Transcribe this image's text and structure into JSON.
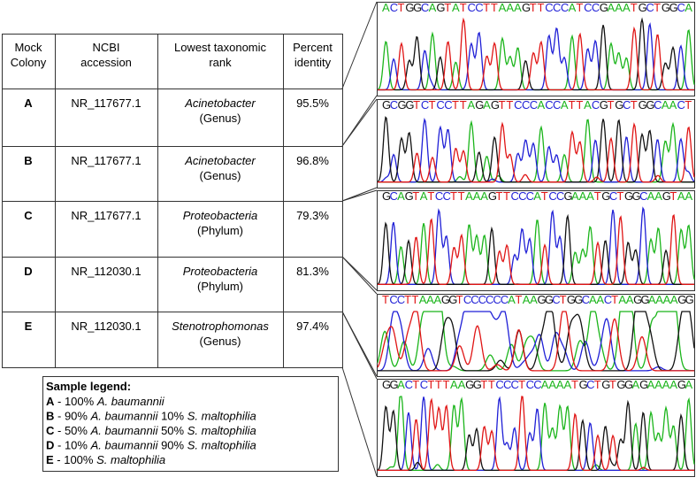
{
  "table": {
    "header": [
      "Mock Colony",
      "NCBI accession",
      "Lowest taxonomic rank",
      "Percent identity"
    ],
    "rows": [
      {
        "colony": "A",
        "accession": "NR_117677.1",
        "taxon": "Acinetobacter",
        "rank": "(Genus)",
        "identity": "95.5%"
      },
      {
        "colony": "B",
        "accession": "NR_117677.1",
        "taxon": "Acinetobacter",
        "rank": "(Genus)",
        "identity": "96.8%"
      },
      {
        "colony": "C",
        "accession": "NR_117677.1",
        "taxon": "Proteobacteria",
        "rank": "(Phylum)",
        "identity": "79.3%"
      },
      {
        "colony": "D",
        "accession": "NR_112030.1",
        "taxon": "Proteobacteria",
        "rank": "(Phylum)",
        "identity": "81.3%"
      },
      {
        "colony": "E",
        "accession": "NR_112030.1",
        "taxon": "Stenotrophomonas",
        "rank": "(Genus)",
        "identity": "97.4%"
      }
    ]
  },
  "legend": {
    "title": "Sample legend:",
    "items": [
      {
        "key": "A",
        "segments": [
          {
            "text": " - 100% ",
            "italic": false
          },
          {
            "text": "A. baumannii",
            "italic": true
          }
        ]
      },
      {
        "key": "B",
        "segments": [
          {
            "text": " - 90% ",
            "italic": false
          },
          {
            "text": "A. baumannii",
            "italic": true
          },
          {
            "text": " 10% ",
            "italic": false
          },
          {
            "text": "S. maltophilia",
            "italic": true
          }
        ]
      },
      {
        "key": "C",
        "segments": [
          {
            "text": " - 50% ",
            "italic": false
          },
          {
            "text": "A. baumannii",
            "italic": true
          },
          {
            "text": " 50% ",
            "italic": false
          },
          {
            "text": "S. maltophilia",
            "italic": true
          }
        ]
      },
      {
        "key": "D",
        "segments": [
          {
            "text": " - 10% ",
            "italic": false
          },
          {
            "text": "A. baumannii",
            "italic": true
          },
          {
            "text": " 90% ",
            "italic": false
          },
          {
            "text": "S. maltophilia",
            "italic": true
          }
        ]
      },
      {
        "key": "E",
        "segments": [
          {
            "text": " - 100% ",
            "italic": false
          },
          {
            "text": "S. maltophilia",
            "italic": true
          }
        ]
      }
    ]
  },
  "chromatograms": [
    {
      "sequence": "ACTGGCAGTATCCTTAAAGTTCCCATCCGAAATGCTGGCA"
    },
    {
      "sequence": "GCGGTCTCCTTAGAGTTCCCACCATTACGTGCTGGCAACT"
    },
    {
      "sequence": "GCAGTATCCTTAAAGTTCCCATCCGAAATGCTGGCAAGTAA"
    },
    {
      "sequence": "TCCTTAAAGGTCCCCCCATAAGGCTGGCAACTAAGGAAAAGG",
      "noisy": true
    },
    {
      "sequence": "GGACTCTTTAAGGTTCCCTCCAAAATGCTGTGGAGAAAAGA"
    }
  ]
}
